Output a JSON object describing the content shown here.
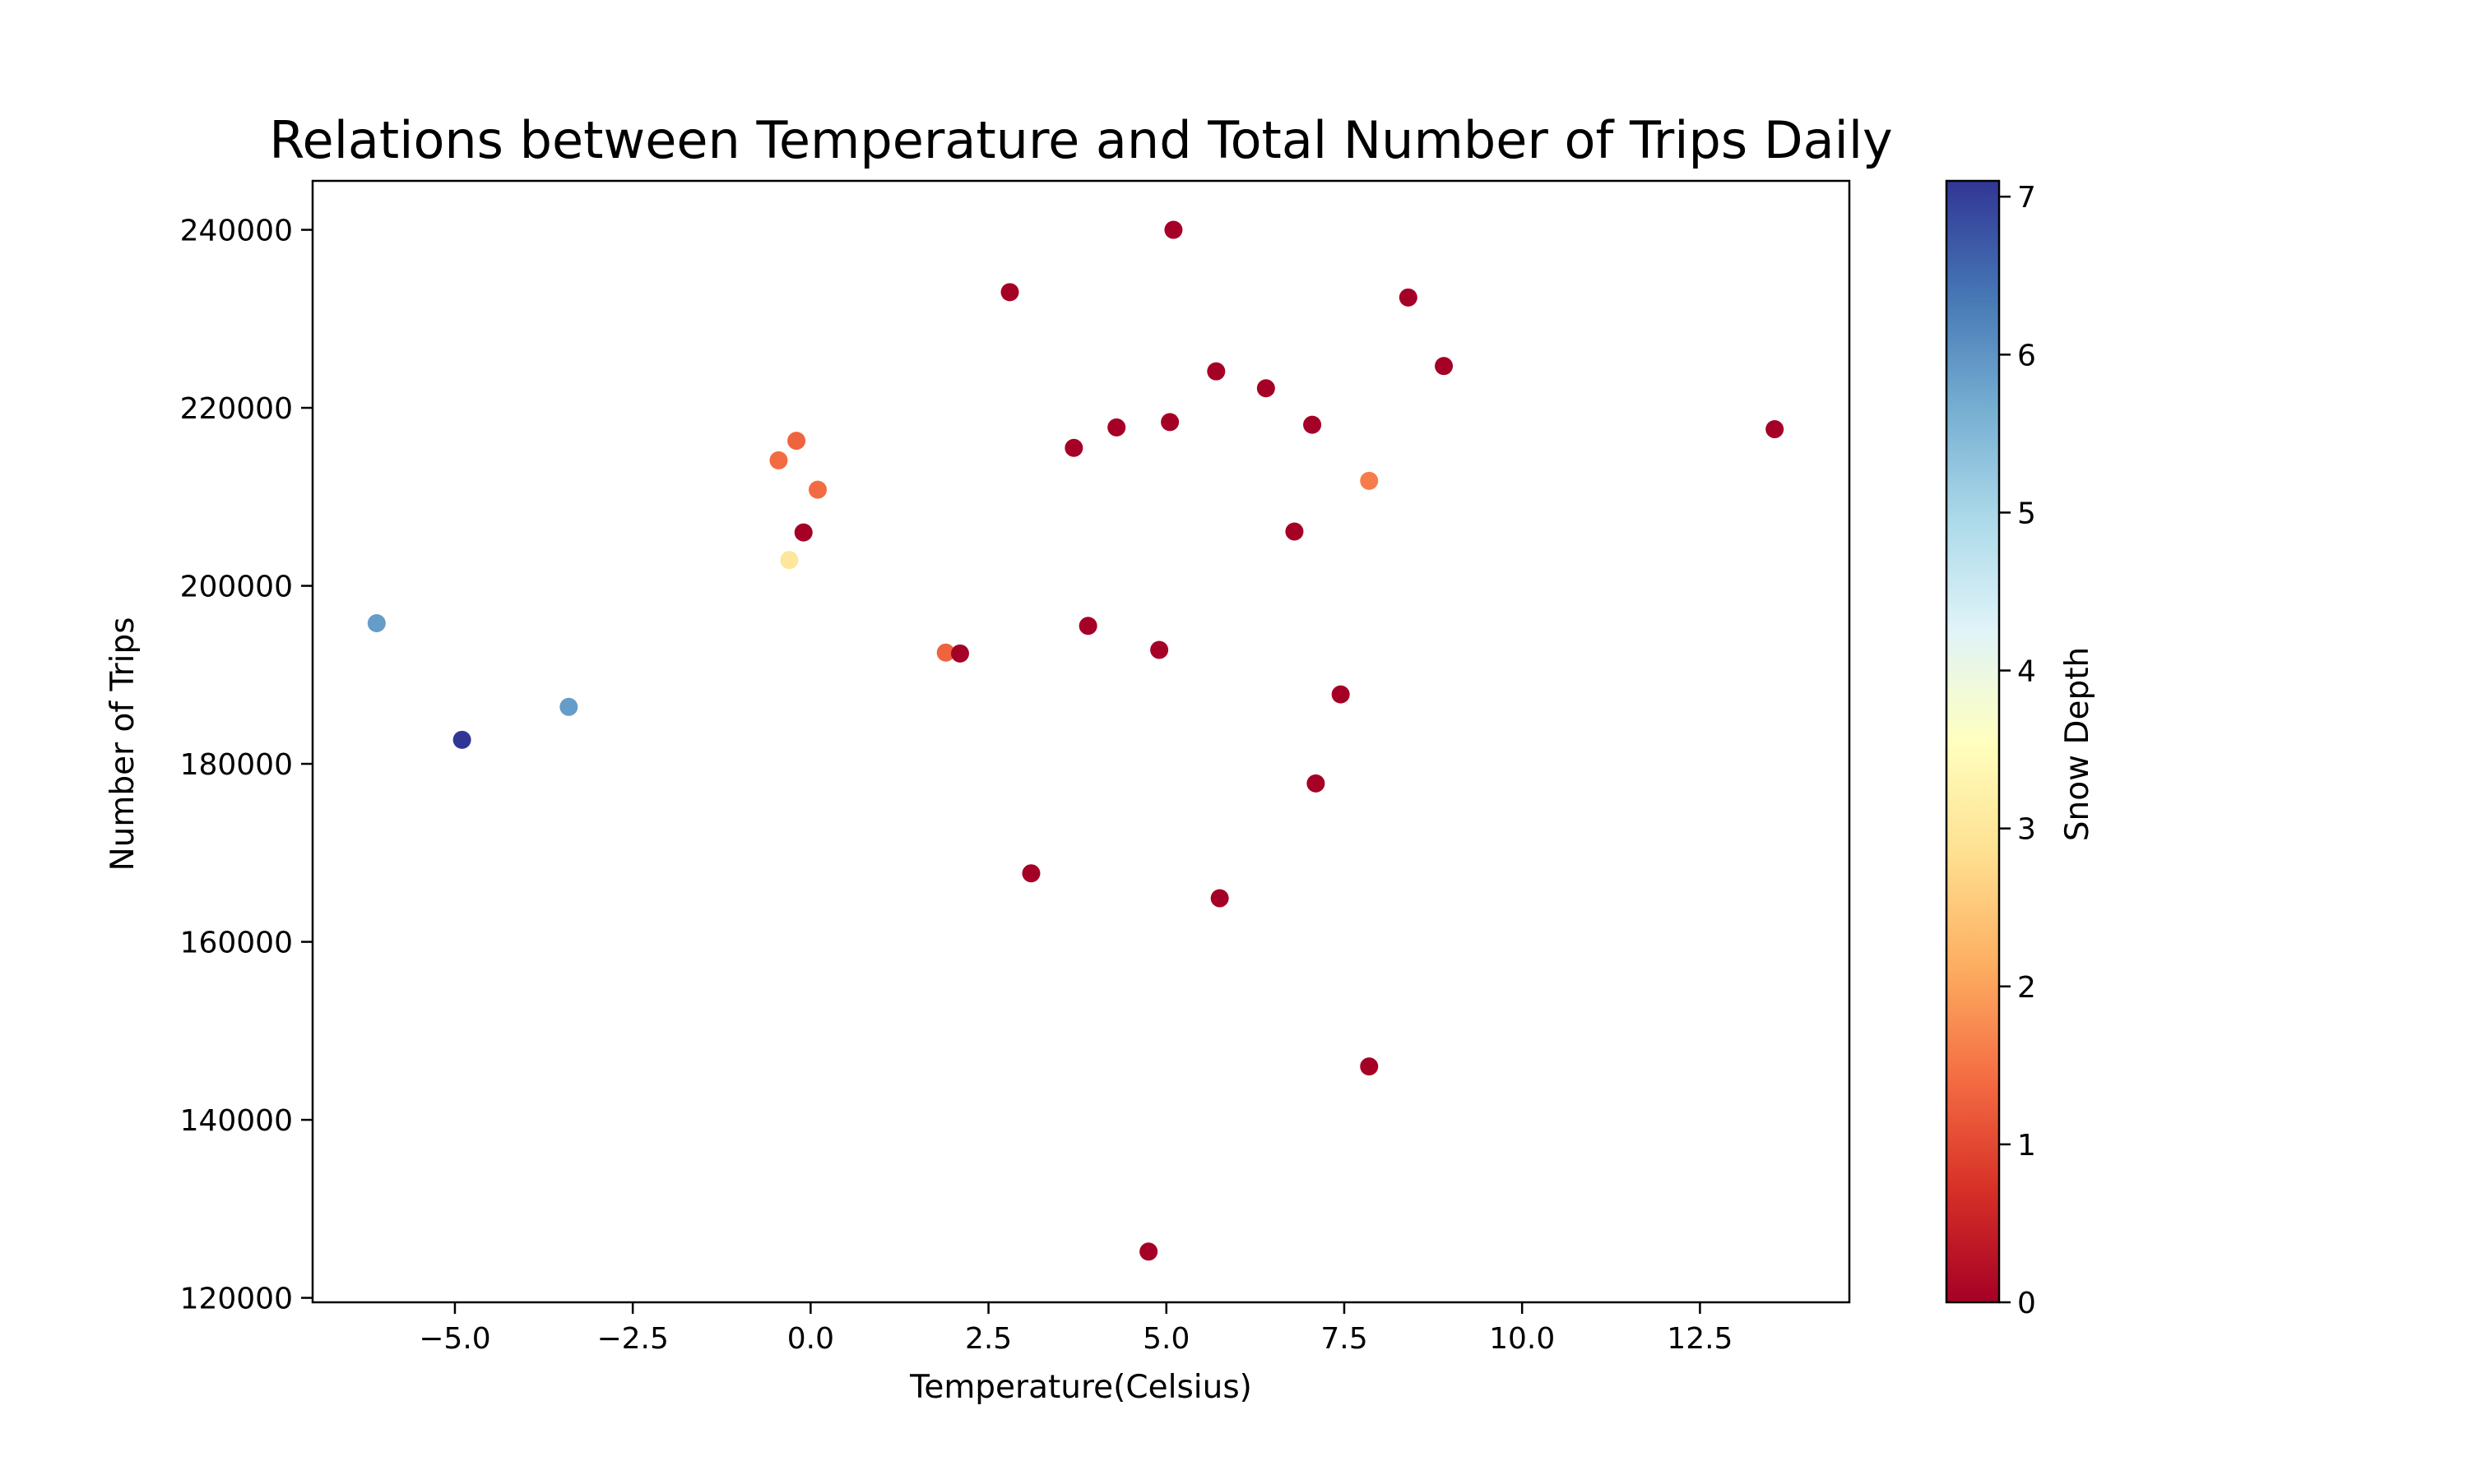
{
  "chart_data": {
    "type": "scatter",
    "title": "Relations between Temperature and Total Number of Trips Daily",
    "xlabel": "Temperature(Celsius)",
    "ylabel": "Number of Trips",
    "xlim": [
      -7.0,
      14.6
    ],
    "ylim": [
      119500,
      245500
    ],
    "x_ticks": [
      -5.0,
      -2.5,
      0.0,
      2.5,
      5.0,
      7.5,
      10.0,
      12.5
    ],
    "x_tick_labels": [
      "−5.0",
      "−2.5",
      "0.0",
      "2.5",
      "5.0",
      "7.5",
      "10.0",
      "12.5"
    ],
    "y_ticks": [
      120000,
      140000,
      160000,
      180000,
      200000,
      220000,
      240000
    ],
    "y_tick_labels": [
      "120000",
      "140000",
      "160000",
      "180000",
      "200000",
      "220000",
      "240000"
    ],
    "grid": false,
    "colorbar": {
      "label": "Snow Depth",
      "colormap": "RdYlBu",
      "range": [
        0,
        7.1
      ],
      "ticks": [
        0,
        1,
        2,
        3,
        4,
        5,
        6,
        7
      ],
      "tick_labels": [
        "0",
        "1",
        "2",
        "3",
        "4",
        "5",
        "6",
        "7"
      ],
      "colors": [
        "#a50026",
        "#d73027",
        "#f46d43",
        "#fdae61",
        "#fee090",
        "#ffffbf",
        "#e0f3f8",
        "#abd9e9",
        "#74add1",
        "#4575b4",
        "#313695"
      ]
    },
    "points": [
      {
        "x": -6.1,
        "y": 195800,
        "snow_depth": 5.9
      },
      {
        "x": -4.9,
        "y": 182700,
        "snow_depth": 7.1
      },
      {
        "x": -3.4,
        "y": 186400,
        "snow_depth": 5.9
      },
      {
        "x": -0.45,
        "y": 214100,
        "snow_depth": 1.4
      },
      {
        "x": -0.3,
        "y": 202900,
        "snow_depth": 3.0
      },
      {
        "x": -0.2,
        "y": 216300,
        "snow_depth": 1.3
      },
      {
        "x": -0.1,
        "y": 206000,
        "snow_depth": 0.0
      },
      {
        "x": 0.1,
        "y": 210800,
        "snow_depth": 1.4
      },
      {
        "x": 1.9,
        "y": 192500,
        "snow_depth": 1.3
      },
      {
        "x": 2.1,
        "y": 192400,
        "snow_depth": 0.0
      },
      {
        "x": 2.8,
        "y": 233000,
        "snow_depth": 0.0
      },
      {
        "x": 3.1,
        "y": 167700,
        "snow_depth": 0.0
      },
      {
        "x": 3.7,
        "y": 215500,
        "snow_depth": 0.0
      },
      {
        "x": 3.9,
        "y": 195500,
        "snow_depth": 0.0
      },
      {
        "x": 4.3,
        "y": 217800,
        "snow_depth": 0.0
      },
      {
        "x": 4.75,
        "y": 125200,
        "snow_depth": 0.0
      },
      {
        "x": 4.9,
        "y": 192800,
        "snow_depth": 0.0
      },
      {
        "x": 5.05,
        "y": 218400,
        "snow_depth": 0.0
      },
      {
        "x": 5.1,
        "y": 240000,
        "snow_depth": 0.0
      },
      {
        "x": 5.7,
        "y": 224100,
        "snow_depth": 0.0
      },
      {
        "x": 5.75,
        "y": 164900,
        "snow_depth": 0.0
      },
      {
        "x": 6.4,
        "y": 222200,
        "snow_depth": 0.0
      },
      {
        "x": 6.8,
        "y": 206100,
        "snow_depth": 0.0
      },
      {
        "x": 7.05,
        "y": 218100,
        "snow_depth": 0.0
      },
      {
        "x": 7.1,
        "y": 177800,
        "snow_depth": 0.0
      },
      {
        "x": 7.45,
        "y": 187800,
        "snow_depth": 0.0
      },
      {
        "x": 7.85,
        "y": 211800,
        "snow_depth": 1.6
      },
      {
        "x": 7.85,
        "y": 146000,
        "snow_depth": 0.0
      },
      {
        "x": 8.4,
        "y": 232400,
        "snow_depth": 0.0
      },
      {
        "x": 8.9,
        "y": 224700,
        "snow_depth": 0.0
      },
      {
        "x": 13.55,
        "y": 217600,
        "snow_depth": 0.0
      }
    ]
  }
}
